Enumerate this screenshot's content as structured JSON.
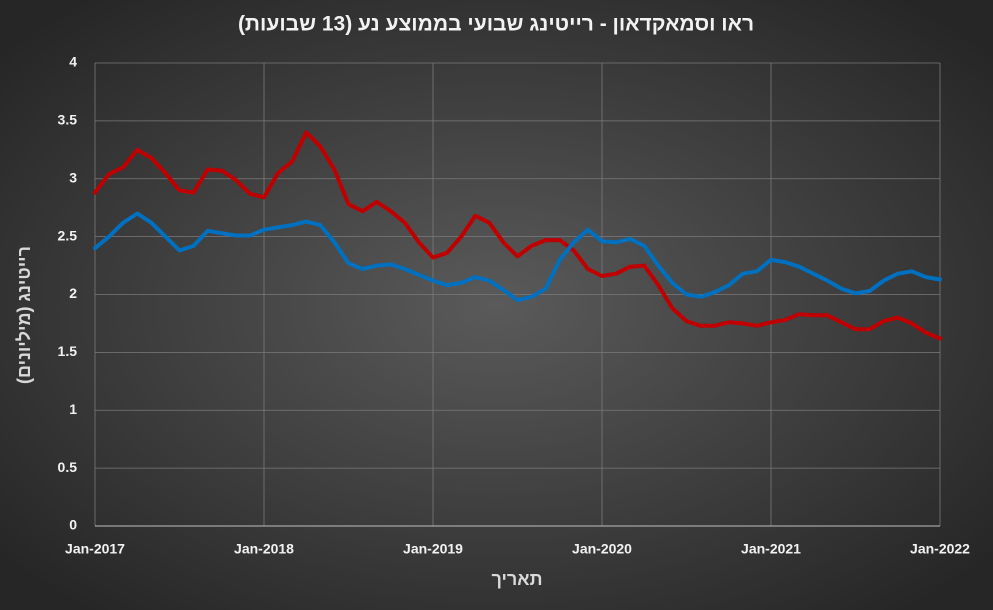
{
  "chart_data": {
    "type": "line",
    "title": "ראו וסמאקדאון - רייטינג שבועי בממוצע נע (13 שבועות)",
    "x_label": "תאריך",
    "y_label": "רייטינג (מיליונים)",
    "x": [
      "2017-01",
      "2017-02",
      "2017-03",
      "2017-04",
      "2017-05",
      "2017-06",
      "2017-07",
      "2017-08",
      "2017-09",
      "2017-10",
      "2017-11",
      "2017-12",
      "2018-01",
      "2018-02",
      "2018-03",
      "2018-04",
      "2018-05",
      "2018-06",
      "2018-07",
      "2018-08",
      "2018-09",
      "2018-10",
      "2018-11",
      "2018-12",
      "2019-01",
      "2019-02",
      "2019-03",
      "2019-04",
      "2019-05",
      "2019-06",
      "2019-07",
      "2019-08",
      "2019-09",
      "2019-10",
      "2019-11",
      "2019-12",
      "2020-01",
      "2020-02",
      "2020-03",
      "2020-04",
      "2020-05",
      "2020-06",
      "2020-07",
      "2020-08",
      "2020-09",
      "2020-10",
      "2020-11",
      "2020-12",
      "2021-01",
      "2021-02",
      "2021-03",
      "2021-04",
      "2021-05",
      "2021-06",
      "2021-07",
      "2021-08",
      "2021-09",
      "2021-10",
      "2021-11",
      "2021-12",
      "2022-01"
    ],
    "series": [
      {
        "color": "#c00000",
        "values": [
          2.88,
          3.04,
          3.1,
          3.25,
          3.18,
          3.05,
          2.9,
          2.88,
          3.08,
          3.07,
          2.99,
          2.87,
          2.84,
          3.05,
          3.15,
          3.4,
          3.28,
          3.08,
          2.78,
          2.72,
          2.8,
          2.72,
          2.62,
          2.45,
          2.32,
          2.36,
          2.5,
          2.68,
          2.62,
          2.45,
          2.33,
          2.42,
          2.47,
          2.47,
          2.38,
          2.22,
          2.16,
          2.18,
          2.24,
          2.25,
          2.08,
          1.88,
          1.77,
          1.73,
          1.73,
          1.76,
          1.75,
          1.73,
          1.76,
          1.78,
          1.83,
          1.82,
          1.82,
          1.76,
          1.7,
          1.7,
          1.77,
          1.8,
          1.75,
          1.67,
          1.62
        ]
      },
      {
        "color": "#0070c0",
        "values": [
          2.4,
          2.5,
          2.62,
          2.7,
          2.62,
          2.5,
          2.38,
          2.42,
          2.55,
          2.53,
          2.51,
          2.51,
          2.56,
          2.58,
          2.6,
          2.63,
          2.6,
          2.45,
          2.27,
          2.22,
          2.25,
          2.26,
          2.22,
          2.17,
          2.12,
          2.08,
          2.1,
          2.15,
          2.12,
          2.04,
          1.95,
          1.98,
          2.05,
          2.3,
          2.45,
          2.56,
          2.46,
          2.45,
          2.48,
          2.42,
          2.25,
          2.1,
          2.0,
          1.98,
          2.02,
          2.08,
          2.18,
          2.2,
          2.3,
          2.28,
          2.24,
          2.18,
          2.12,
          2.05,
          2.01,
          2.03,
          2.12,
          2.18,
          2.2,
          2.15,
          2.13
        ]
      }
    ],
    "xlim": [
      "2017-01",
      "2022-01"
    ],
    "xticks": [
      {
        "value": "2017-01",
        "label": "Jan-2017"
      },
      {
        "value": "2018-01",
        "label": "Jan-2018"
      },
      {
        "value": "2019-01",
        "label": "Jan-2019"
      },
      {
        "value": "2020-01",
        "label": "Jan-2020"
      },
      {
        "value": "2021-01",
        "label": "Jan-2021"
      },
      {
        "value": "2022-01",
        "label": "Jan-2022"
      }
    ],
    "ylim": [
      0,
      4
    ],
    "yticks": [
      0,
      0.5,
      1,
      1.5,
      2,
      2.5,
      3,
      3.5,
      4
    ],
    "grid": true
  }
}
